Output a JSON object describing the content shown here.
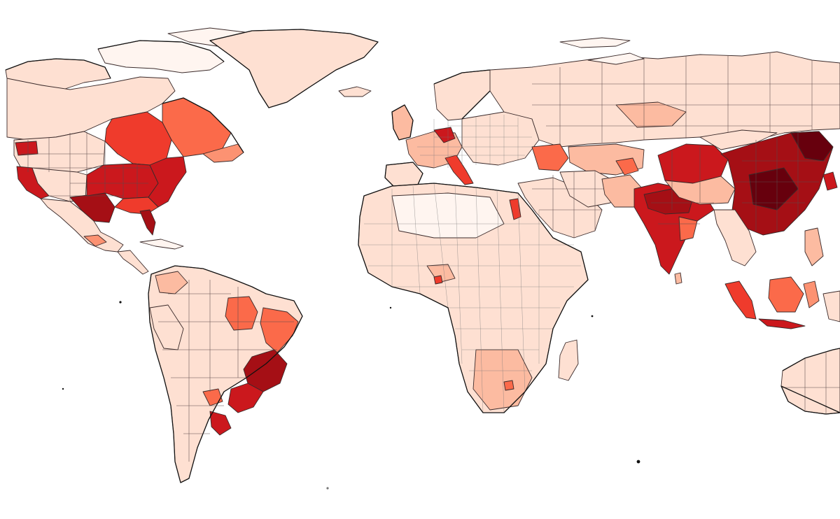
{
  "palette": {
    "background": "#ffffff",
    "level_0": "#fff5f0",
    "level_1": "#fee0d2",
    "level_2": "#fcbba1",
    "level_3": "#fc9272",
    "level_4": "#fb6a4a",
    "level_5": "#ef3b2c",
    "level_6": "#cb181d",
    "level_7": "#a50f15",
    "level_8": "#67000d",
    "outline": "#111111"
  },
  "map": {
    "type": "choropleth",
    "projection": "world-equirectangular",
    "color_scheme": "sequential-reds",
    "legend": "none",
    "title": ""
  }
}
